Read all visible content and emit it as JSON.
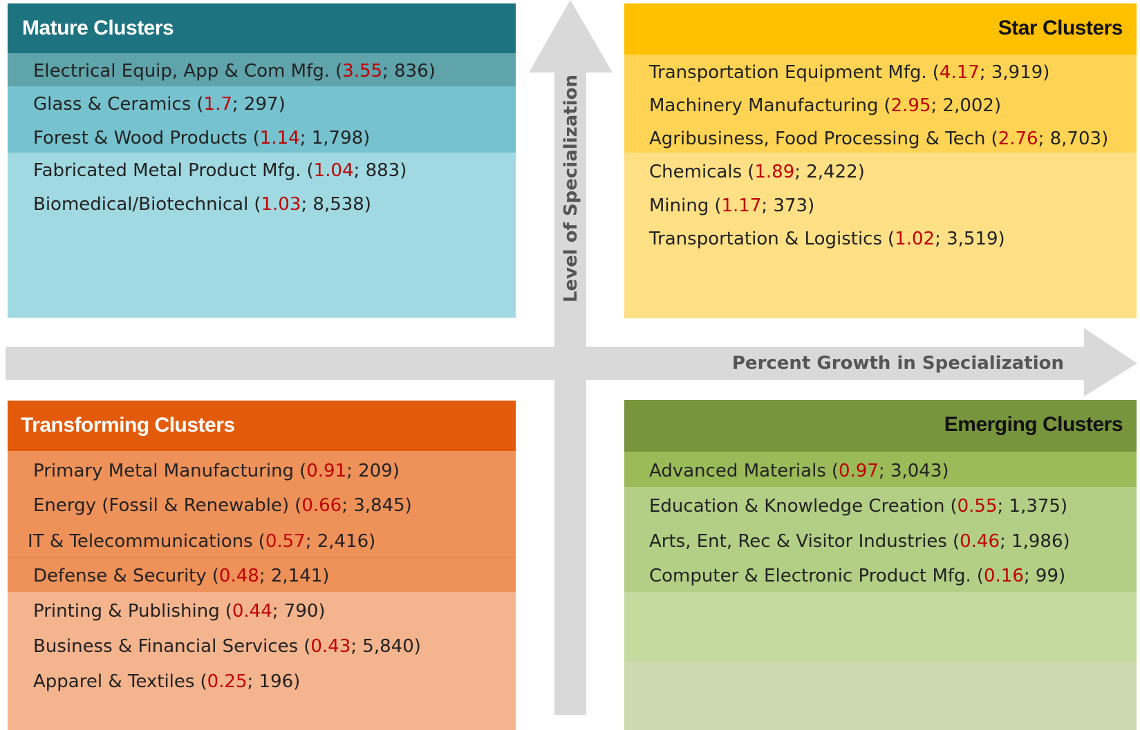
{
  "quadrants": [
    {
      "title": "Mature Clusters",
      "items": [
        {
          "name": "Electrical Equip, App & Com Mfg.",
          "value": 3.55,
          "count": "836"
        },
        {
          "name": "Glass & Ceramics",
          "value": 1.7,
          "count": "297"
        },
        {
          "name": "Forest & Wood Products",
          "value": 1.14,
          "count": "1,798"
        },
        {
          "name": "Fabricated Metal Product Mfg.",
          "value": 1.04,
          "count": "883"
        },
        {
          "name": "Biomedical/Biotechnical",
          "value": 1.03,
          "count": "8,538"
        }
      ]
    },
    {
      "title": "Star Clusters",
      "items": [
        {
          "name": "Transportation Equipment Mfg.",
          "value": 4.17,
          "count": "3,919"
        },
        {
          "name": "Machinery Manufacturing",
          "value": 2.95,
          "count": "2,002"
        },
        {
          "name": "Agribusiness, Food Processing & Tech",
          "value": 2.76,
          "count": "8,703"
        },
        {
          "name": "Chemicals",
          "value": 1.89,
          "count": "2,422"
        },
        {
          "name": "Mining",
          "value": 1.17,
          "count": "373"
        },
        {
          "name": "Transportation & Logistics",
          "value": 1.02,
          "count": "3,519"
        }
      ]
    },
    {
      "title": "Transforming Clusters",
      "items": [
        {
          "name": "Primary Metal Manufacturing",
          "value": 0.91,
          "count": "209"
        },
        {
          "name": "Energy (Fossil & Renewable)",
          "value": 0.66,
          "count": "3,845"
        },
        {
          "name": "IT & Telecommunications",
          "value": 0.57,
          "count": "2,416"
        },
        {
          "name": "Defense & Security",
          "value": 0.48,
          "count": "2,141"
        },
        {
          "name": "Printing & Publishing",
          "value": 0.44,
          "count": "790"
        },
        {
          "name": "Business & Financial Services",
          "value": 0.43,
          "count": "5,840"
        },
        {
          "name": "Apparel & Textiles",
          "value": 0.25,
          "count": "196"
        }
      ]
    },
    {
      "title": "Emerging Clusters",
      "items": [
        {
          "name": "Advanced Materials",
          "value": 0.97,
          "count": "3,043"
        },
        {
          "name": "Education & Knowledge Creation",
          "value": 0.55,
          "count": "1,375"
        },
        {
          "name": "Arts, Ent, Rec & Visitor Industries",
          "value": 0.46,
          "count": "1,986"
        },
        {
          "name": "Computer & Electronic Product Mfg.",
          "value": 0.16,
          "count": "99"
        }
      ]
    }
  ],
  "axes": {
    "y_label": "Level of Specialization",
    "x_label": "Percent Growth in Specialization"
  }
}
